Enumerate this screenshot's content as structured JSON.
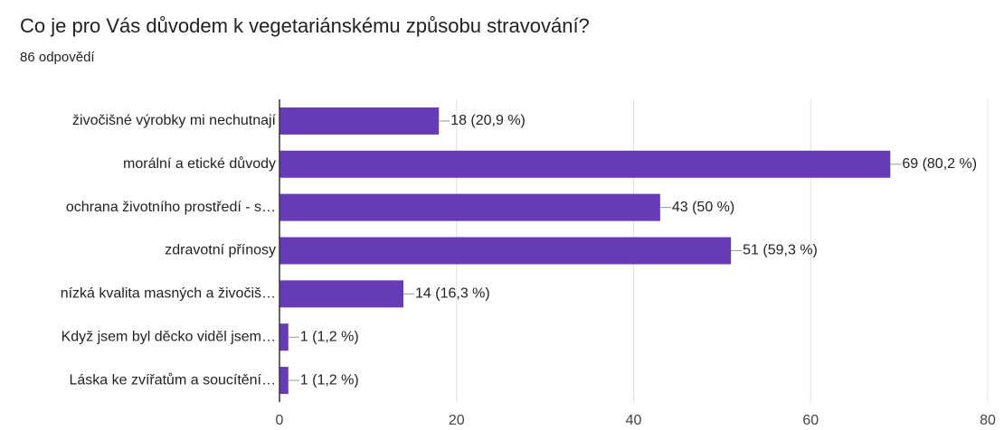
{
  "chart_data": {
    "type": "bar",
    "orientation": "horizontal",
    "title": "Co je pro Vás důvodem k vegetariánskému způsobu stravování?",
    "subtitle": "86 odpovědí",
    "categories": [
      "živočišné výrobky mi nechutnají",
      "morální a etické důvody",
      "ochrana životního prostředí - s…",
      "zdravotní přínosy",
      "nízká kvalita masných a živočiš…",
      "Když jsem byl děcko viděl jsem…",
      "Láska ke zvířatům a soucítění…"
    ],
    "values": [
      18,
      69,
      43,
      51,
      14,
      1,
      1
    ],
    "value_labels": [
      "18 (20,9 %)",
      "69 (80,2 %)",
      "43 (50 %)",
      "51 (59,3 %)",
      "14 (16,3 %)",
      "1 (1,2 %)",
      "1 (1,2 %)"
    ],
    "color": "#673ab7",
    "xlim": [
      0,
      80
    ],
    "xticks": [
      0,
      20,
      40,
      60,
      80
    ],
    "grid": true
  }
}
